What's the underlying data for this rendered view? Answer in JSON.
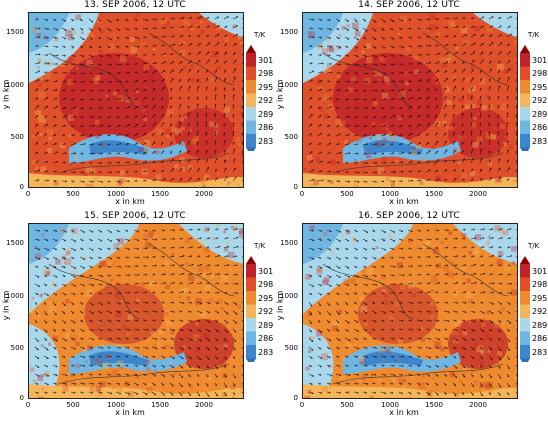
{
  "panels": [
    {
      "title": "13. SEP 2006, 12 UTC",
      "theme": "hot"
    },
    {
      "title": "14. SEP 2006, 12 UTC",
      "theme": "hot"
    },
    {
      "title": "15. SEP 2006, 12 UTC",
      "theme": "warm"
    },
    {
      "title": "16. SEP 2006, 12 UTC",
      "theme": "warm"
    }
  ],
  "axes": {
    "xlabel": "x in km",
    "ylabel": "y in km",
    "xticks": [
      "0",
      "500",
      "1000",
      "1500",
      "2000"
    ],
    "yticks": [
      "0",
      "500",
      "1000",
      "1500"
    ]
  },
  "colorbar": {
    "unit": "T/K",
    "labels": [
      "301",
      "298",
      "295",
      "292",
      "289",
      "286",
      "283"
    ],
    "colors": [
      "#c0222a",
      "#e0502a",
      "#ef8a2e",
      "#f5b65a",
      "#a9d8ec",
      "#6fb6e2",
      "#3d86cc"
    ]
  }
}
